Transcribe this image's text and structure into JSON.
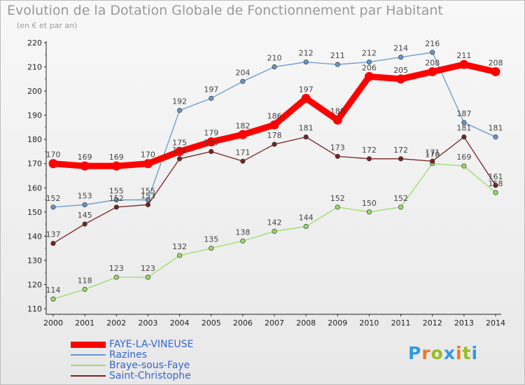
{
  "title": "Evolution de la Dotation Globale de Fonctionnement par Habitant",
  "subtitle": "(en € et par an)",
  "chart_data": {
    "type": "line",
    "title": "Evolution de la Dotation Globale de Fonctionnement par Habitant",
    "subtitle": "(en € et par an)",
    "xlabel": "",
    "ylabel": "",
    "x": [
      "2000",
      "2001",
      "2002",
      "2003",
      "2004",
      "2005",
      "2006",
      "2007",
      "2008",
      "2009",
      "2010",
      "2011",
      "2012",
      "2013",
      "2014"
    ],
    "ylim": [
      110,
      220
    ],
    "yticks": [
      110,
      120,
      130,
      140,
      150,
      160,
      170,
      180,
      190,
      200,
      210,
      220
    ],
    "grid": false,
    "legend_position": "bottom-left",
    "series": [
      {
        "name": "FAYE-LA-VINEUSE",
        "color": "#ff0000",
        "emphasis": true,
        "values": [
          170,
          169,
          169,
          170,
          175,
          179,
          182,
          186,
          197,
          188,
          206,
          205,
          208,
          211,
          208
        ]
      },
      {
        "name": "Razines",
        "color": "#6699cc",
        "values": [
          152,
          153,
          155,
          155,
          192,
          197,
          204,
          210,
          212,
          211,
          212,
          214,
          216,
          187,
          181
        ]
      },
      {
        "name": "Braye-sous-Faye",
        "color": "#99dd66",
        "values": [
          114,
          118,
          123,
          123,
          132,
          135,
          138,
          142,
          144,
          152,
          150,
          152,
          170,
          169,
          158
        ]
      },
      {
        "name": "Saint-Christophe",
        "color": "#772222",
        "values": [
          137,
          145,
          152,
          153,
          172,
          175,
          171,
          178,
          181,
          173,
          172,
          172,
          171,
          181,
          161
        ]
      }
    ],
    "data_labels": [
      [
        170,
        169,
        169,
        170,
        175,
        179,
        182,
        186,
        197,
        188,
        206,
        205,
        208,
        211,
        208
      ],
      [
        152,
        153,
        155,
        155,
        192,
        197,
        204,
        210,
        212,
        211,
        212,
        214,
        216,
        187,
        181
      ],
      [
        114,
        118,
        123,
        123,
        132,
        135,
        138,
        142,
        144,
        152,
        150,
        152,
        170,
        169,
        158
      ],
      [
        137,
        145,
        152,
        153,
        172,
        175,
        171,
        178,
        181,
        173,
        172,
        172,
        171,
        181,
        161
      ]
    ]
  },
  "branding": {
    "letters": [
      "P",
      "r",
      "o",
      "x",
      "i",
      "t",
      "i"
    ],
    "colors": [
      "#3399dd",
      "#ee7722",
      "#99bb22",
      "#3399dd",
      "#ee7722",
      "#99bb22",
      "#3399dd"
    ]
  }
}
